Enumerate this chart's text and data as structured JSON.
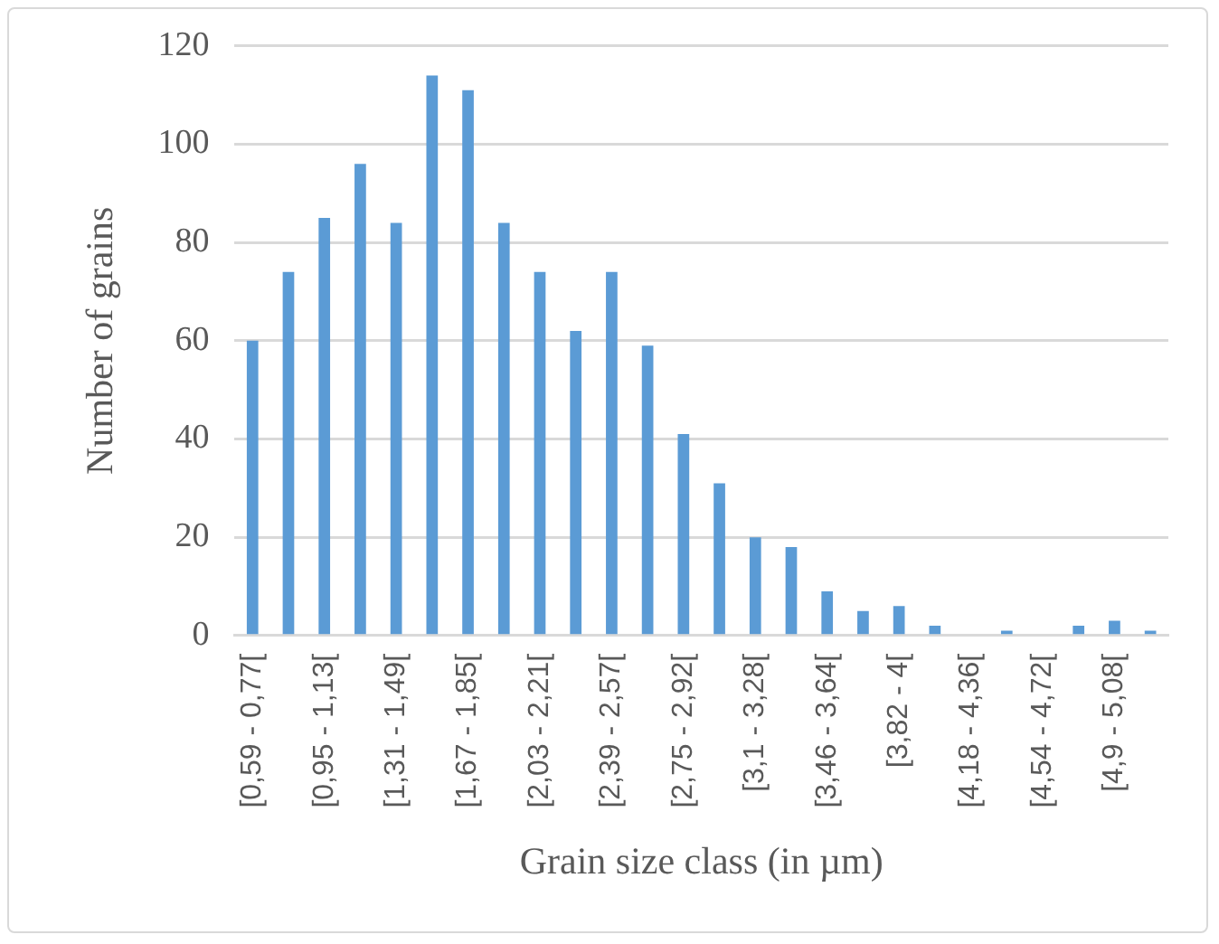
{
  "chart_data": {
    "type": "bar",
    "xlabel": "Grain size class (in µm)",
    "ylabel": "Number of grains",
    "categories": [
      "[0,59 - 0,77[",
      null,
      "[0,95 - 1,13[",
      null,
      "[1,31 - 1,49[",
      null,
      "[1,67 - 1,85[",
      null,
      "[2,03 - 2,21[",
      null,
      "[2,39 - 2,57[",
      null,
      "[2,75 - 2,92[",
      null,
      "[3,1 - 3,28[",
      null,
      "[3,46 - 3,64[",
      null,
      "[3,82 - 4[",
      null,
      "[4,18 - 4,36[",
      null,
      "[4,54 - 4,72[",
      null,
      "[4,9 - 5,08[",
      null
    ],
    "values": [
      60,
      74,
      85,
      96,
      84,
      114,
      111,
      84,
      74,
      62,
      74,
      59,
      41,
      31,
      20,
      18,
      9,
      5,
      6,
      2,
      0,
      1,
      0,
      2,
      3,
      1
    ],
    "color": "#5b9bd5",
    "ylim": [
      0,
      120
    ],
    "yticks": [
      0,
      20,
      40,
      60,
      80,
      100,
      120
    ],
    "grid": "y",
    "legend": false
  }
}
